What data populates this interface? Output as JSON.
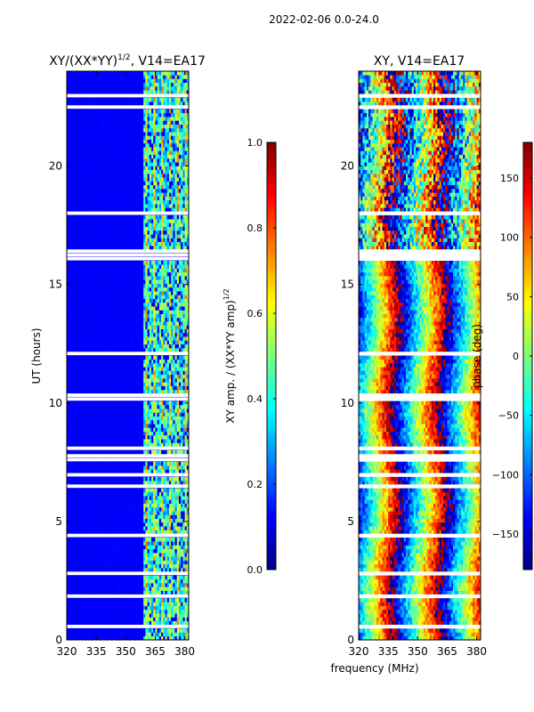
{
  "figure_title": "2022-02-06 0.0-24.0",
  "shared_xlabel": "frequency (MHz)",
  "chart_data": [
    {
      "type": "heatmap",
      "title_main": "XY/(XX*YY)",
      "title_sup": "1/2",
      "title_tail": ", V14=EA17",
      "xlabel": "",
      "ylabel": "UT (hours)",
      "xlim": [
        320,
        382
      ],
      "ylim": [
        0,
        24
      ],
      "xticks": [
        320,
        335,
        350,
        365,
        380
      ],
      "yticks": [
        0,
        5,
        10,
        15,
        20
      ],
      "colorbar": {
        "label_main": "XY amp. / (XX*YY amp)",
        "label_sup": "1/2",
        "range": [
          0.0,
          1.0
        ],
        "ticks": [
          "0.0",
          "0.2",
          "0.4",
          "0.6",
          "0.8",
          "1.0"
        ],
        "tick_values": [
          0.0,
          0.2,
          0.4,
          0.6,
          0.8,
          1.0
        ],
        "colormap": "jet"
      },
      "notes": "Low amplitude (~0.05) below 359 MHz, high variable amplitude (0.3-0.8) from 359 to 382 MHz; white gaps near 7.5 h and 16.2 h"
    },
    {
      "type": "heatmap",
      "title_main": "XY, V14=EA17",
      "title_sup": "",
      "title_tail": "",
      "xlabel": "frequency (MHz)",
      "ylabel": "",
      "xlim": [
        320,
        382
      ],
      "ylim": [
        0,
        24
      ],
      "xticks": [
        320,
        335,
        350,
        365,
        380
      ],
      "yticks": [
        0,
        5,
        10,
        15,
        20
      ],
      "colorbar": {
        "label_main": "phase (deg)",
        "label_sup": "",
        "range": [
          -180,
          180
        ],
        "ticks": [
          "150",
          "100",
          "50",
          "0",
          "−50",
          "−100",
          "−150"
        ],
        "tick_values": [
          150,
          100,
          50,
          0,
          -50,
          -100,
          -150
        ],
        "colormap": "jet"
      },
      "notes": "Phase near 0 deg around 347-355 MHz, wrapping +/-180 elsewhere; noisy above 16 h"
    }
  ]
}
